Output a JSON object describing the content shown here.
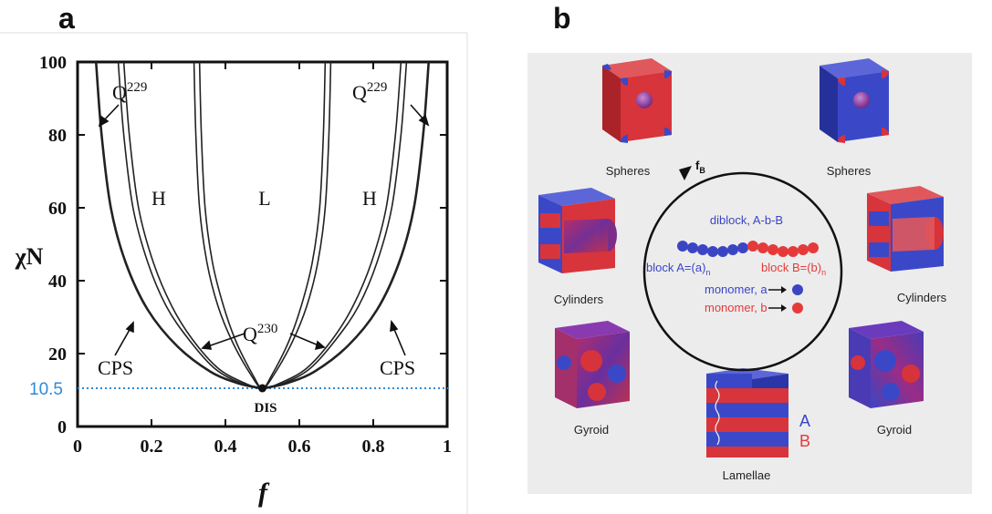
{
  "panels": {
    "a": {
      "letter": "a"
    },
    "b": {
      "letter": "b"
    }
  },
  "chart_data": {
    "type": "line",
    "xlabel": "f",
    "ylabel": "χN",
    "xlim": [
      0,
      1
    ],
    "ylim": [
      0,
      100
    ],
    "x_ticks": [
      "0",
      "0.2",
      "0.4",
      "0.6",
      "0.8",
      "1"
    ],
    "y_ticks": [
      "0",
      "20",
      "40",
      "60",
      "80",
      "100"
    ],
    "critical_point": {
      "x": 0.5,
      "y": 10.5
    },
    "reference_line": {
      "y": 10.5,
      "label": "10.5",
      "color": "#2e8ad8",
      "style": "dotted"
    },
    "region_labels": {
      "H_left": "H",
      "L": "L",
      "H_right": "H",
      "DIS": "DIS"
    },
    "annotations": {
      "Q229_left": {
        "base": "Q",
        "sup": "229"
      },
      "Q229_right": {
        "base": "Q",
        "sup": "229"
      },
      "Q230": {
        "base": "Q",
        "sup": "230"
      },
      "CPS_left": "CPS",
      "CPS_right": "CPS"
    },
    "series": [
      {
        "x": [
          0.05,
          0.065,
          0.09,
          0.13,
          0.19,
          0.27,
          0.36,
          0.43,
          0.48,
          0.5,
          0.52,
          0.57,
          0.64,
          0.73,
          0.81,
          0.87,
          0.91,
          0.935,
          0.95
        ],
        "y": [
          100,
          80,
          60,
          45,
          32,
          22,
          15,
          12,
          10.8,
          10.5,
          10.8,
          12,
          15,
          22,
          32,
          45,
          60,
          80,
          100
        ]
      },
      {
        "x": [
          0.11,
          0.125,
          0.15,
          0.19,
          0.24,
          0.3,
          0.37,
          0.44,
          0.5,
          0.56,
          0.63,
          0.7,
          0.76,
          0.81,
          0.85,
          0.875,
          0.89
        ],
        "y": [
          100,
          80,
          60,
          45,
          33,
          24,
          16,
          12,
          10.5,
          12,
          16,
          24,
          33,
          45,
          60,
          80,
          100
        ]
      },
      {
        "x": [
          0.125,
          0.14,
          0.165,
          0.205,
          0.255,
          0.31,
          0.38,
          0.45,
          0.5,
          0.55,
          0.62,
          0.69,
          0.745,
          0.795,
          0.835,
          0.86,
          0.875
        ],
        "y": [
          100,
          80,
          60,
          45,
          33,
          24,
          16,
          12,
          10.5,
          12,
          16,
          24,
          33,
          45,
          60,
          80,
          100
        ]
      },
      {
        "x": [
          0.315,
          0.32,
          0.33,
          0.35,
          0.38,
          0.42,
          0.47,
          0.5,
          0.53,
          0.58,
          0.62,
          0.65,
          0.67,
          0.68,
          0.685
        ],
        "y": [
          100,
          80,
          60,
          45,
          33,
          23,
          14,
          10.5,
          14,
          23,
          33,
          45,
          60,
          80,
          100
        ]
      },
      {
        "x": [
          0.33,
          0.335,
          0.345,
          0.365,
          0.395,
          0.43,
          0.475,
          0.5,
          0.525,
          0.57,
          0.605,
          0.635,
          0.655,
          0.665,
          0.67
        ],
        "y": [
          100,
          80,
          60,
          45,
          33,
          23,
          14,
          10.5,
          14,
          23,
          33,
          45,
          60,
          80,
          100
        ]
      }
    ]
  },
  "figure_b": {
    "labels": {
      "spheres_left": "Spheres",
      "spheres_right": "Spheres",
      "cylinders_left": "Cylinders",
      "cylinders_right": "Cylinders",
      "gyroid_left": "Gyroid",
      "gyroid_right": "Gyroid",
      "lamellae": "Lamellae",
      "fB": {
        "base": "f",
        "sub": "B"
      },
      "layer_A": "A",
      "layer_B": "B"
    },
    "center": {
      "diblock": "diblock, A-b-B",
      "blockA": {
        "text": "block A=(a)",
        "sub": "n"
      },
      "blockB": {
        "text": "block B=(b)",
        "sub": "n"
      },
      "monomer_a": "monomer, a",
      "monomer_b": "monomer, b"
    },
    "colors": {
      "A": "#3b45c4",
      "B": "#e53a3a",
      "cube_red": "#d7333a",
      "cube_blue": "#3a48c8"
    }
  }
}
